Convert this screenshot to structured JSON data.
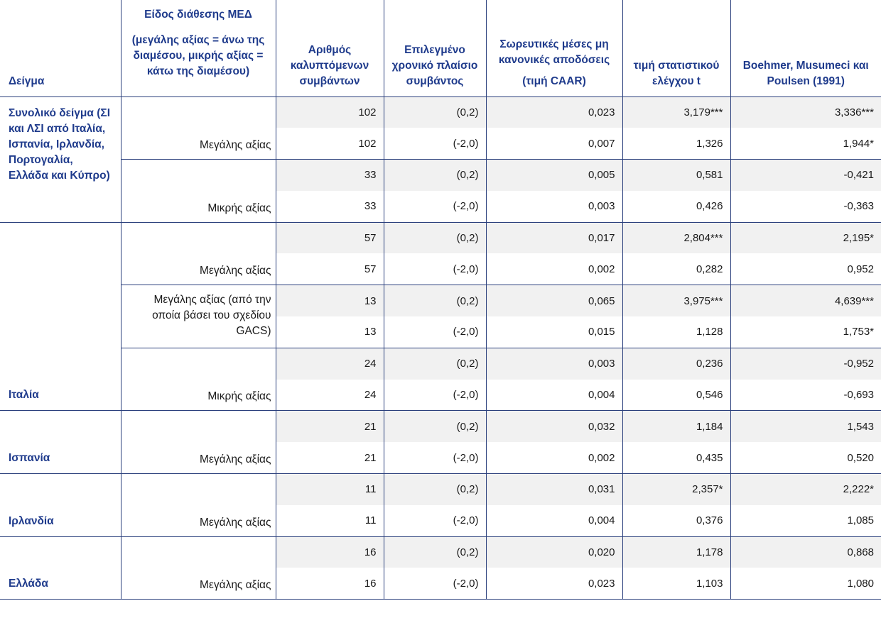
{
  "headers": {
    "sample": "Δείγμα",
    "type_line1": "Είδος διάθεσης ΜΕΔ",
    "type_line2": "(μεγάλης αξίας = άνω της διαμέσου, μικρής αξίας = κάτω της διαμέσου)",
    "count": "Αριθμός καλυπτόμενων συμβάντων",
    "window": "Επιλεγμένο χρονικό πλαίσιο συμβάντος",
    "caar_line1": "Σωρευτικές μέσες μη κανονικές αποδόσεις",
    "caar_line2": "(τιμή CAAR)",
    "tstat": "τιμή στατιστικού ελέγχου t",
    "bmp": "Boehmer, Musumeci και Poulsen (1991)"
  },
  "groups": [
    {
      "sample": "Συνολικό δείγμα (ΣΙ και ΛΣΙ από Ιταλία, Ισπανία, Ιρλανδία, Πορτογαλία, Ελλάδα και Κύπρο)",
      "subgroups": [
        {
          "type": "Μεγάλης αξίας",
          "rows": [
            {
              "n": "102",
              "window": "(0,2)",
              "caar": "0,023",
              "t": "3,179***",
              "bmp": "3,336***"
            },
            {
              "n": "102",
              "window": "(-2,0)",
              "caar": "0,007",
              "t": "1,326",
              "bmp": "1,944*"
            }
          ]
        },
        {
          "type": "Μικρής αξίας",
          "rows": [
            {
              "n": "33",
              "window": "(0,2)",
              "caar": "0,005",
              "t": "0,581",
              "bmp": "-0,421"
            },
            {
              "n": "33",
              "window": "(-2,0)",
              "caar": "0,003",
              "t": "0,426",
              "bmp": "-0,363"
            }
          ]
        }
      ]
    },
    {
      "sample": "Ιταλία",
      "subgroups": [
        {
          "type": "Μεγάλης αξίας",
          "rows": [
            {
              "n": "57",
              "window": "(0,2)",
              "caar": "0,017",
              "t": "2,804***",
              "bmp": "2,195*"
            },
            {
              "n": "57",
              "window": "(-2,0)",
              "caar": "0,002",
              "t": "0,282",
              "bmp": "0,952"
            }
          ]
        },
        {
          "type": "Μεγάλης αξίας (από την οποία βάσει του σχεδίου GACS)",
          "rows": [
            {
              "n": "13",
              "window": "(0,2)",
              "caar": "0,065",
              "t": "3,975***",
              "bmp": "4,639***"
            },
            {
              "n": "13",
              "window": "(-2,0)",
              "caar": "0,015",
              "t": "1,128",
              "bmp": "1,753*"
            }
          ]
        },
        {
          "type": "Μικρής αξίας",
          "rows": [
            {
              "n": "24",
              "window": "(0,2)",
              "caar": "0,003",
              "t": "0,236",
              "bmp": "-0,952"
            },
            {
              "n": "24",
              "window": "(-2,0)",
              "caar": "0,004",
              "t": "0,546",
              "bmp": "-0,693"
            }
          ]
        }
      ]
    },
    {
      "sample": "Ισπανία",
      "subgroups": [
        {
          "type": "Μεγάλης αξίας",
          "rows": [
            {
              "n": "21",
              "window": "(0,2)",
              "caar": "0,032",
              "t": "1,184",
              "bmp": "1,543"
            },
            {
              "n": "21",
              "window": "(-2,0)",
              "caar": "0,002",
              "t": "0,435",
              "bmp": "0,520"
            }
          ]
        }
      ]
    },
    {
      "sample": "Ιρλανδία",
      "subgroups": [
        {
          "type": "Μεγάλης αξίας",
          "rows": [
            {
              "n": "11",
              "window": "(0,2)",
              "caar": "0,031",
              "t": "2,357*",
              "bmp": "2,222*"
            },
            {
              "n": "11",
              "window": "(-2,0)",
              "caar": "0,004",
              "t": "0,376",
              "bmp": "1,085"
            }
          ]
        }
      ]
    },
    {
      "sample": "Ελλάδα",
      "subgroups": [
        {
          "type": "Μεγάλης αξίας",
          "rows": [
            {
              "n": "16",
              "window": "(0,2)",
              "caar": "0,020",
              "t": "1,178",
              "bmp": "0,868"
            },
            {
              "n": "16",
              "window": "(-2,0)",
              "caar": "0,023",
              "t": "1,103",
              "bmp": "1,080"
            }
          ]
        }
      ]
    }
  ],
  "colors": {
    "header_text": "#1f3b8c",
    "rule": "#2a3f7c",
    "shade": "#f1f1f1"
  }
}
